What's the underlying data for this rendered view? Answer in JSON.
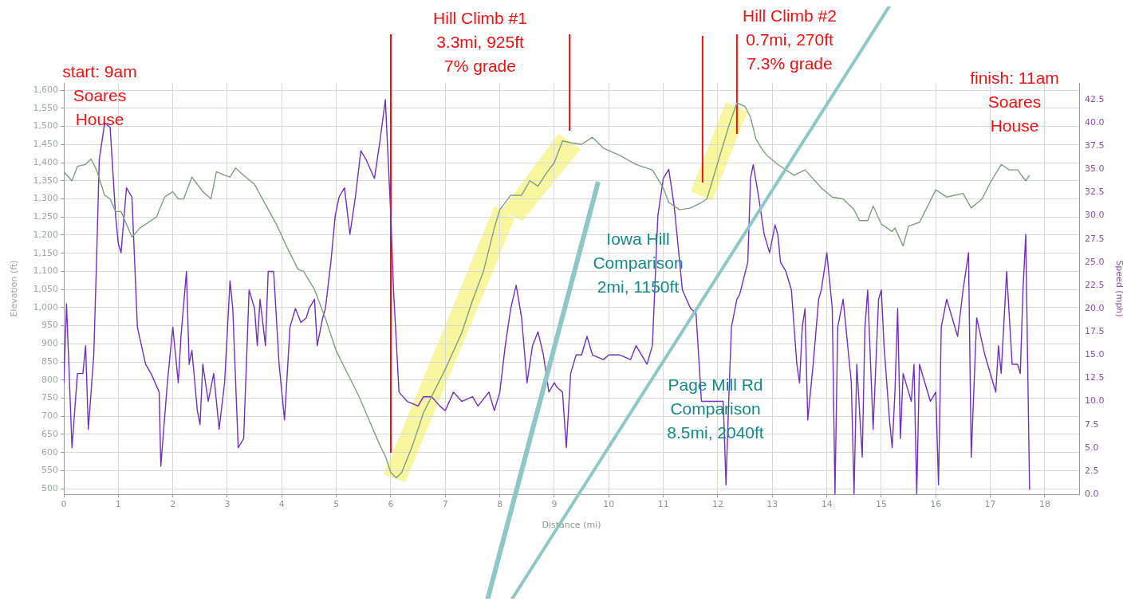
{
  "chart_data": {
    "type": "line",
    "xlabel": "Distance (mi)",
    "ylabel": "Elevation (ft)",
    "y2label": "Speed (mph)",
    "grid": true,
    "legend": false,
    "marker": "none",
    "line_style": "solid",
    "xlim": [
      0,
      18.63
    ],
    "xticks": [
      0,
      1,
      2,
      3,
      4,
      5,
      6,
      7,
      8,
      9,
      10,
      11,
      12,
      13,
      14,
      15,
      16,
      17,
      18
    ],
    "ylim": [
      485,
      1620
    ],
    "yticks": [
      500,
      550,
      600,
      650,
      700,
      750,
      800,
      850,
      900,
      950,
      {
        "value": 1000,
        "label": "1,000"
      },
      {
        "value": 1050,
        "label": "1,050"
      },
      {
        "value": 1100,
        "label": "1,100"
      },
      {
        "value": 1150,
        "label": "1,150"
      },
      {
        "value": 1200,
        "label": "1,200"
      },
      {
        "value": 1250,
        "label": "1,250"
      },
      {
        "value": 1300,
        "label": "1,300"
      },
      {
        "value": 1350,
        "label": "1,350"
      },
      {
        "value": 1400,
        "label": "1,400"
      },
      {
        "value": 1450,
        "label": "1,450"
      },
      {
        "value": 1500,
        "label": "1,500"
      },
      {
        "value": 1550,
        "label": "1,550"
      },
      {
        "value": 1600,
        "label": "1,600"
      }
    ],
    "y2lim": [
      0,
      44.3
    ],
    "y2ticks": [
      {
        "value": 0,
        "label": "0.0"
      },
      {
        "value": 2.5,
        "label": "2.5"
      },
      {
        "value": 5,
        "label": "5.0"
      },
      {
        "value": 7.5,
        "label": "7.5"
      },
      {
        "value": 10,
        "label": "10.0"
      },
      {
        "value": 12.5,
        "label": "12.5"
      },
      {
        "value": 15,
        "label": "15.0"
      },
      {
        "value": 17.5,
        "label": "17.5"
      },
      {
        "value": 20,
        "label": "20.0"
      },
      {
        "value": 22.5,
        "label": "22.5"
      },
      {
        "value": 25,
        "label": "25.0"
      },
      {
        "value": 27.5,
        "label": "27.5"
      },
      {
        "value": 30,
        "label": "30.0"
      },
      {
        "value": 32.5,
        "label": "32.5"
      },
      {
        "value": 35,
        "label": "35.0"
      },
      {
        "value": 37.5,
        "label": "37.5"
      },
      {
        "value": 40,
        "label": "40.0"
      },
      {
        "value": 42.5,
        "label": "42.5"
      }
    ],
    "annotations": [
      "start: 9am\nSoares\nHouse",
      "Hill Climb #1\n3.3mi, 925ft\n7% grade",
      "Hill Climb #2\n0.7mi, 270ft\n7.3% grade",
      "finish: 11am\nSoares\nHouse",
      "Iowa Hill\nComparison\n2mi, 1150ft",
      "Page Mill Rd\nComparison\n8.5mi, 2040ft"
    ],
    "ref_lines": [
      {
        "axis": "x",
        "value": 6.0,
        "color": "#ee1111"
      },
      {
        "axis": "x",
        "value": 9.28,
        "color": "#ee1111"
      },
      {
        "axis": "x",
        "value": 11.72,
        "color": "#ee1111"
      },
      {
        "axis": "x",
        "value": 12.35,
        "color": "#ee1111"
      }
    ],
    "series": [
      {
        "color": "#7f9f7f",
        "x": [
          0,
          0.15,
          0.25,
          0.4,
          0.5,
          0.6,
          0.75,
          0.85,
          0.95,
          1.05,
          1.25,
          1.4,
          1.7,
          1.85,
          2.0,
          2.1,
          2.2,
          2.35,
          2.45,
          2.55,
          2.7,
          2.8,
          2.95,
          3.05,
          3.15,
          3.3,
          3.5,
          3.7,
          3.9,
          4.1,
          4.3,
          4.4,
          4.6,
          4.8,
          5.0,
          5.1,
          5.2,
          5.4,
          5.6,
          5.8,
          5.9,
          6.0,
          6.1,
          6.2,
          6.4,
          6.6,
          6.8,
          7.0,
          7.3,
          7.5,
          7.7,
          7.9,
          8.0,
          8.2,
          8.4,
          8.55,
          8.7,
          8.85,
          9.0,
          9.15,
          9.3,
          9.5,
          9.7,
          9.9,
          10.2,
          10.5,
          10.8,
          11.0,
          11.1,
          11.3,
          11.5,
          11.7,
          11.8,
          12.0,
          12.2,
          12.35,
          12.5,
          12.6,
          12.7,
          12.8,
          12.9,
          13.1,
          13.4,
          13.6,
          13.9,
          14.1,
          14.3,
          14.5,
          14.6,
          14.75,
          14.85,
          15.0,
          15.2,
          15.25,
          15.4,
          15.5,
          15.7,
          15.85,
          16.0,
          16.2,
          16.5,
          16.65,
          16.85,
          17.0,
          17.2,
          17.35,
          17.5,
          17.65,
          17.72
        ],
        "values": [
          1375,
          1350,
          1390,
          1395,
          1410,
          1380,
          1310,
          1300,
          1265,
          1265,
          1195,
          1220,
          1250,
          1305,
          1320,
          1300,
          1300,
          1360,
          1340,
          1320,
          1300,
          1375,
          1365,
          1360,
          1385,
          1365,
          1340,
          1285,
          1230,
          1165,
          1105,
          1100,
          1050,
          970,
          880,
          850,
          820,
          760,
          690,
          620,
          590,
          545,
          530,
          545,
          620,
          710,
          770,
          830,
          930,
          1020,
          1100,
          1220,
          1270,
          1310,
          1310,
          1350,
          1335,
          1370,
          1400,
          1460,
          1455,
          1450,
          1470,
          1440,
          1420,
          1395,
          1380,
          1330,
          1290,
          1270,
          1275,
          1290,
          1300,
          1400,
          1500,
          1565,
          1555,
          1525,
          1465,
          1440,
          1420,
          1395,
          1365,
          1380,
          1330,
          1305,
          1300,
          1270,
          1240,
          1240,
          1280,
          1230,
          1210,
          1220,
          1170,
          1225,
          1235,
          1280,
          1325,
          1305,
          1315,
          1275,
          1300,
          1345,
          1395,
          1380,
          1380,
          1350,
          1365
        ]
      },
      {
        "color": "#7030c0",
        "axis": "y2",
        "x": [
          0,
          0.05,
          0.15,
          0.25,
          0.35,
          0.4,
          0.45,
          0.55,
          0.6,
          0.65,
          0.75,
          0.85,
          0.95,
          1.0,
          1.05,
          1.15,
          1.25,
          1.35,
          1.5,
          1.6,
          1.75,
          1.78,
          1.9,
          2.0,
          2.1,
          2.15,
          2.25,
          2.3,
          2.35,
          2.45,
          2.5,
          2.55,
          2.65,
          2.75,
          2.85,
          2.95,
          3.05,
          3.1,
          3.2,
          3.3,
          3.4,
          3.5,
          3.55,
          3.6,
          3.7,
          3.75,
          3.85,
          3.95,
          4.05,
          4.15,
          4.25,
          4.35,
          4.45,
          4.5,
          4.6,
          4.65,
          4.75,
          4.8,
          4.9,
          4.98,
          5.05,
          5.15,
          5.25,
          5.35,
          5.45,
          5.55,
          5.7,
          5.8,
          5.9,
          6.0,
          6.05,
          6.15,
          6.3,
          6.5,
          6.6,
          6.75,
          6.9,
          7.0,
          7.15,
          7.3,
          7.5,
          7.6,
          7.8,
          7.9,
          8.0,
          8.1,
          8.2,
          8.3,
          8.4,
          8.5,
          8.6,
          8.7,
          8.8,
          8.9,
          9.0,
          9.05,
          9.15,
          9.22,
          9.3,
          9.4,
          9.5,
          9.6,
          9.7,
          9.9,
          10.0,
          10.2,
          10.4,
          10.5,
          10.7,
          10.8,
          10.9,
          11.0,
          11.1,
          11.2,
          11.35,
          11.5,
          11.6,
          11.7,
          11.9,
          12.0,
          12.1,
          12.15,
          12.2,
          12.25,
          12.35,
          12.4,
          12.55,
          12.6,
          12.65,
          12.75,
          12.85,
          12.95,
          13.05,
          13.1,
          13.15,
          13.25,
          13.35,
          13.45,
          13.5,
          13.55,
          13.6,
          13.65,
          13.75,
          13.85,
          13.9,
          14.0,
          14.1,
          14.15,
          14.2,
          14.3,
          14.45,
          14.5,
          14.55,
          14.65,
          14.7,
          14.75,
          14.85,
          14.95,
          15.0,
          15.05,
          15.15,
          15.2,
          15.25,
          15.3,
          15.35,
          15.4,
          15.55,
          15.6,
          15.65,
          15.7,
          15.8,
          15.9,
          16.0,
          16.05,
          16.1,
          16.2,
          16.3,
          16.4,
          16.5,
          16.6,
          16.65,
          16.75,
          16.9,
          17.05,
          17.1,
          17.15,
          17.2,
          17.3,
          17.4,
          17.5,
          17.55,
          17.6,
          17.65,
          17.72
        ],
        "values": [
          12,
          20.5,
          5,
          13,
          13,
          16,
          7,
          15,
          25,
          36,
          40,
          39.5,
          30,
          27,
          26,
          33,
          32,
          18,
          14,
          13,
          11,
          3,
          12,
          18,
          12,
          17,
          24,
          14,
          15.5,
          9,
          7.5,
          14,
          10,
          13,
          7,
          12,
          23,
          20,
          5,
          6,
          22,
          20,
          16,
          21,
          16,
          24,
          24,
          14,
          8,
          18,
          20,
          18.5,
          19,
          20,
          21,
          16,
          19,
          20,
          25,
          30,
          32,
          33,
          28,
          32,
          37,
          36,
          34,
          38,
          42.5,
          30,
          22,
          11,
          10,
          9.5,
          10.5,
          10.5,
          9.5,
          9,
          11,
          10,
          10.5,
          9.5,
          11,
          9,
          11,
          16,
          20,
          22.5,
          19,
          12,
          16,
          17.5,
          15,
          11,
          12,
          11.5,
          11,
          5,
          13,
          15,
          15,
          17,
          15,
          14.5,
          15,
          15,
          14.5,
          16,
          14,
          16,
          30,
          34,
          35,
          31,
          22,
          20,
          19.5,
          10,
          10,
          10,
          10,
          1,
          10,
          18,
          21,
          21.5,
          25,
          34,
          35.5,
          32,
          28,
          26,
          29,
          28,
          25,
          24,
          22,
          14,
          12,
          18,
          20,
          8,
          14,
          21,
          22,
          26,
          20,
          0,
          18,
          21,
          12,
          0,
          14,
          4,
          18,
          22,
          7,
          21,
          22,
          16,
          8,
          5,
          11,
          20,
          6,
          13,
          10,
          14,
          0,
          14,
          12,
          10,
          11,
          1,
          18,
          21,
          19,
          17,
          22,
          26,
          4,
          19,
          15,
          12,
          11,
          16,
          13,
          24,
          14,
          14,
          13,
          22,
          28,
          0.5
        ]
      }
    ]
  }
}
